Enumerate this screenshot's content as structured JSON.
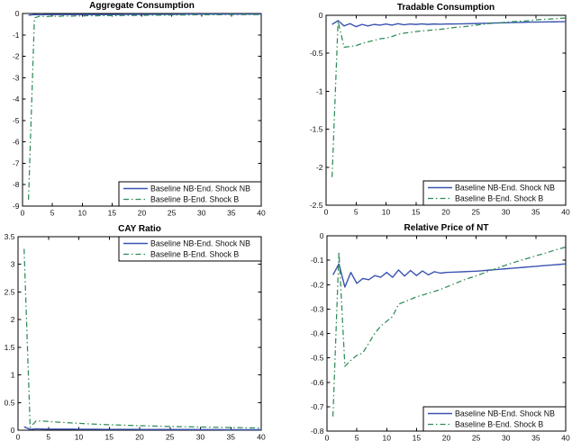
{
  "figure": {
    "background": "#ffffff",
    "axis_color": "#000000",
    "tick_text_color": "#111111"
  },
  "colors": {
    "baseline_nb_line": "#3b53b0",
    "baseline_b_line": "#2e8b57",
    "legend_background": "#ffffff",
    "legend_border": "#000000"
  },
  "legend": {
    "entry_nb": "Baseline NB-End. Shock NB",
    "entry_b": "Baseline B-End. Shock B"
  },
  "chart_data": [
    {
      "type": "line",
      "title": "Aggregate Consumption",
      "xlabel": "",
      "ylabel": "",
      "xlim": [
        0,
        40
      ],
      "ylim": [
        -9,
        0
      ],
      "xticks": [
        0,
        5,
        10,
        15,
        20,
        25,
        30,
        35,
        40
      ],
      "yticks": [
        0,
        -1,
        -2,
        -3,
        -4,
        -5,
        -6,
        -7,
        -8,
        -9
      ],
      "grid": false,
      "legend_position": "bottom-right",
      "x": [
        1,
        2,
        3,
        4,
        5,
        6,
        7,
        8,
        9,
        10,
        11,
        12,
        13,
        14,
        15,
        16,
        17,
        18,
        19,
        20,
        21,
        22,
        23,
        24,
        25,
        26,
        27,
        28,
        29,
        30,
        31,
        32,
        33,
        34,
        35,
        36,
        37,
        38,
        39,
        40
      ],
      "series": [
        {
          "name": "Baseline NB-End. Shock NB",
          "style": "solid",
          "color": "#3b53b0",
          "values": [
            -0.08,
            -0.05,
            -0.06,
            -0.05,
            -0.05,
            -0.05,
            -0.05,
            -0.05,
            -0.05,
            -0.05,
            -0.05,
            -0.05,
            -0.05,
            -0.05,
            -0.05,
            -0.05,
            -0.04,
            -0.04,
            -0.04,
            -0.04,
            -0.04,
            -0.04,
            -0.04,
            -0.04,
            -0.04,
            -0.04,
            -0.03,
            -0.03,
            -0.03,
            -0.03,
            -0.03,
            -0.03,
            -0.03,
            -0.03,
            -0.03,
            -0.03,
            -0.03,
            -0.03,
            -0.03,
            -0.03
          ]
        },
        {
          "name": "Baseline B-End. Shock B",
          "style": "dash-dot",
          "color": "#2e8b57",
          "values": [
            -8.7,
            -0.2,
            -0.12,
            -0.15,
            -0.12,
            -0.14,
            -0.11,
            -0.13,
            -0.11,
            -0.12,
            -0.1,
            -0.11,
            -0.1,
            -0.1,
            -0.1,
            -0.1,
            -0.09,
            -0.09,
            -0.09,
            -0.09,
            -0.08,
            -0.08,
            -0.08,
            -0.08,
            -0.07,
            -0.07,
            -0.07,
            -0.07,
            -0.06,
            -0.06,
            -0.06,
            -0.06,
            -0.06,
            -0.05,
            -0.05,
            -0.05,
            -0.05,
            -0.05,
            -0.05,
            -0.05
          ]
        }
      ]
    },
    {
      "type": "line",
      "title": "Tradable Consumption",
      "xlabel": "",
      "ylabel": "",
      "xlim": [
        0,
        40
      ],
      "ylim": [
        -2.5,
        0
      ],
      "xticks": [
        0,
        5,
        10,
        15,
        20,
        25,
        30,
        35,
        40
      ],
      "yticks": [
        0,
        -0.5,
        -1,
        -1.5,
        -2,
        -2.5
      ],
      "grid": false,
      "legend_position": "bottom-right",
      "x": [
        1,
        2,
        3,
        4,
        5,
        6,
        7,
        8,
        9,
        10,
        11,
        12,
        13,
        14,
        15,
        16,
        17,
        18,
        19,
        20,
        21,
        22,
        23,
        24,
        25,
        26,
        27,
        28,
        29,
        30,
        31,
        32,
        33,
        34,
        35,
        36,
        37,
        38,
        39,
        40
      ],
      "series": [
        {
          "name": "Baseline NB-End. Shock NB",
          "style": "solid",
          "color": "#3b53b0",
          "values": [
            -0.12,
            -0.07,
            -0.14,
            -0.11,
            -0.15,
            -0.12,
            -0.14,
            -0.12,
            -0.13,
            -0.115,
            -0.13,
            -0.11,
            -0.125,
            -0.115,
            -0.12,
            -0.113,
            -0.12,
            -0.114,
            -0.118,
            -0.115,
            -0.114,
            -0.113,
            -0.112,
            -0.11,
            -0.108,
            -0.106,
            -0.104,
            -0.102,
            -0.1,
            -0.098,
            -0.096,
            -0.094,
            -0.092,
            -0.09,
            -0.089,
            -0.088,
            -0.087,
            -0.086,
            -0.085,
            -0.084
          ]
        },
        {
          "name": "Baseline B-End. Shock B",
          "style": "dash-dot",
          "color": "#2e8b57",
          "values": [
            -2.13,
            -0.08,
            -0.42,
            -0.41,
            -0.4,
            -0.37,
            -0.35,
            -0.33,
            -0.31,
            -0.3,
            -0.28,
            -0.25,
            -0.235,
            -0.225,
            -0.215,
            -0.205,
            -0.2,
            -0.19,
            -0.185,
            -0.175,
            -0.165,
            -0.155,
            -0.15,
            -0.14,
            -0.13,
            -0.12,
            -0.11,
            -0.105,
            -0.1,
            -0.09,
            -0.085,
            -0.08,
            -0.075,
            -0.07,
            -0.06,
            -0.055,
            -0.05,
            -0.045,
            -0.04,
            -0.035
          ]
        }
      ]
    },
    {
      "type": "line",
      "title": "CAY Ratio",
      "xlabel": "",
      "ylabel": "",
      "xlim": [
        0,
        40
      ],
      "ylim": [
        0,
        3.5
      ],
      "xticks": [
        0,
        5,
        10,
        15,
        20,
        25,
        30,
        35,
        40
      ],
      "yticks": [
        0,
        0.5,
        1,
        1.5,
        2,
        2.5,
        3,
        3.5
      ],
      "grid": false,
      "legend_position": "top-right",
      "x": [
        1,
        2,
        3,
        4,
        5,
        6,
        7,
        8,
        9,
        10,
        11,
        12,
        13,
        14,
        15,
        16,
        17,
        18,
        19,
        20,
        21,
        22,
        23,
        24,
        25,
        26,
        27,
        28,
        29,
        30,
        31,
        32,
        33,
        34,
        35,
        36,
        37,
        38,
        39,
        40
      ],
      "series": [
        {
          "name": "Baseline NB-End. Shock NB",
          "style": "solid",
          "color": "#3b53b0",
          "values": [
            0.06,
            0.015,
            0.025,
            0.022,
            0.02,
            0.02,
            0.02,
            0.019,
            0.019,
            0.018,
            0.018,
            0.017,
            0.017,
            0.016,
            0.016,
            0.016,
            0.015,
            0.015,
            0.015,
            0.014,
            0.014,
            0.014,
            0.013,
            0.013,
            0.013,
            0.012,
            0.012,
            0.012,
            0.012,
            0.011,
            0.011,
            0.011,
            0.011,
            0.01,
            0.01,
            0.01,
            0.01,
            0.01,
            0.01,
            0.01
          ]
        },
        {
          "name": "Baseline B-End. Shock B",
          "style": "dash-dot",
          "color": "#2e8b57",
          "values": [
            3.28,
            0.05,
            0.17,
            0.165,
            0.158,
            0.15,
            0.143,
            0.136,
            0.13,
            0.124,
            0.118,
            0.113,
            0.108,
            0.103,
            0.099,
            0.095,
            0.091,
            0.088,
            0.085,
            0.082,
            0.079,
            0.076,
            0.073,
            0.07,
            0.068,
            0.066,
            0.064,
            0.062,
            0.06,
            0.058,
            0.056,
            0.054,
            0.052,
            0.05,
            0.048,
            0.046,
            0.044,
            0.042,
            0.04,
            0.038
          ]
        }
      ]
    },
    {
      "type": "line",
      "title": "Relative Price of NT",
      "xlabel": "",
      "ylabel": "",
      "xlim": [
        0,
        40
      ],
      "ylim": [
        -0.8,
        0
      ],
      "xticks": [
        0,
        5,
        10,
        15,
        20,
        25,
        30,
        35,
        40
      ],
      "yticks": [
        0,
        -0.1,
        -0.2,
        -0.3,
        -0.4,
        -0.5,
        -0.6,
        -0.7,
        -0.8
      ],
      "grid": false,
      "legend_position": "bottom-right",
      "x": [
        1,
        2,
        3,
        4,
        5,
        6,
        7,
        8,
        9,
        10,
        11,
        12,
        13,
        14,
        15,
        16,
        17,
        18,
        19,
        20,
        21,
        22,
        23,
        24,
        25,
        26,
        27,
        28,
        29,
        30,
        31,
        32,
        33,
        34,
        35,
        36,
        37,
        38,
        39,
        40
      ],
      "series": [
        {
          "name": "Baseline NB-End. Shock NB",
          "style": "solid",
          "color": "#3b53b0",
          "values": [
            -0.16,
            -0.115,
            -0.21,
            -0.15,
            -0.195,
            -0.175,
            -0.18,
            -0.163,
            -0.17,
            -0.15,
            -0.17,
            -0.14,
            -0.165,
            -0.142,
            -0.163,
            -0.144,
            -0.16,
            -0.147,
            -0.153,
            -0.15,
            -0.149,
            -0.148,
            -0.147,
            -0.146,
            -0.145,
            -0.143,
            -0.141,
            -0.139,
            -0.137,
            -0.135,
            -0.133,
            -0.131,
            -0.129,
            -0.127,
            -0.125,
            -0.123,
            -0.121,
            -0.119,
            -0.117,
            -0.115
          ]
        },
        {
          "name": "Baseline B-End. Shock B",
          "style": "dash-dot",
          "color": "#2e8b57",
          "values": [
            -0.74,
            -0.065,
            -0.535,
            -0.51,
            -0.49,
            -0.48,
            -0.44,
            -0.4,
            -0.37,
            -0.35,
            -0.33,
            -0.28,
            -0.27,
            -0.26,
            -0.25,
            -0.243,
            -0.235,
            -0.228,
            -0.22,
            -0.21,
            -0.2,
            -0.19,
            -0.18,
            -0.172,
            -0.164,
            -0.155,
            -0.146,
            -0.137,
            -0.128,
            -0.12,
            -0.112,
            -0.104,
            -0.097,
            -0.09,
            -0.082,
            -0.075,
            -0.068,
            -0.06,
            -0.053,
            -0.046
          ]
        }
      ]
    }
  ]
}
